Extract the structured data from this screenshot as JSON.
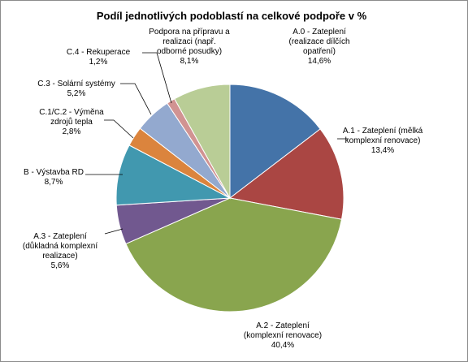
{
  "chart_data": {
    "type": "pie",
    "title": "Podíl jednotlivých podoblastí na celkové podpoře v %",
    "slices": [
      {
        "label": [
          "A.0 - Zateplení",
          "(realizace dílčích",
          "opatření)"
        ],
        "value_text": "14,6%",
        "value": 14.6,
        "color": "#4473a8"
      },
      {
        "label": [
          "A.1 - Zateplení (mělká",
          "komplexní renovace)"
        ],
        "value_text": "13,4%",
        "value": 13.4,
        "color": "#aa4643"
      },
      {
        "label": [
          "A.2 - Zateplení",
          "(komplexní renovace)"
        ],
        "value_text": "40,4%",
        "value": 40.4,
        "color": "#89a54e"
      },
      {
        "label": [
          "A.3 - Zateplení",
          "(důkladná komplexní",
          "realizace)"
        ],
        "value_text": "5,6%",
        "value": 5.6,
        "color": "#71588f"
      },
      {
        "label": [
          "B - Výstavba RD"
        ],
        "value_text": "8,7%",
        "value": 8.7,
        "color": "#4198af"
      },
      {
        "label": [
          "C.1/C.2 - Výměna",
          "zdrojů tepla"
        ],
        "value_text": "2,8%",
        "value": 2.8,
        "color": "#db843d"
      },
      {
        "label": [
          "C.3 - Solární systémy"
        ],
        "value_text": "5,2%",
        "value": 5.2,
        "color": "#93a9cf"
      },
      {
        "label": [
          "C.4 - Rekuperace"
        ],
        "value_text": "1,2%",
        "value": 1.2,
        "color": "#d19392"
      },
      {
        "label": [
          "Podpora na přípravu a",
          "realizaci (např.",
          "odborné posudky)"
        ],
        "value_text": "8,1%",
        "value": 8.1,
        "color": "#b9cd96"
      }
    ]
  }
}
